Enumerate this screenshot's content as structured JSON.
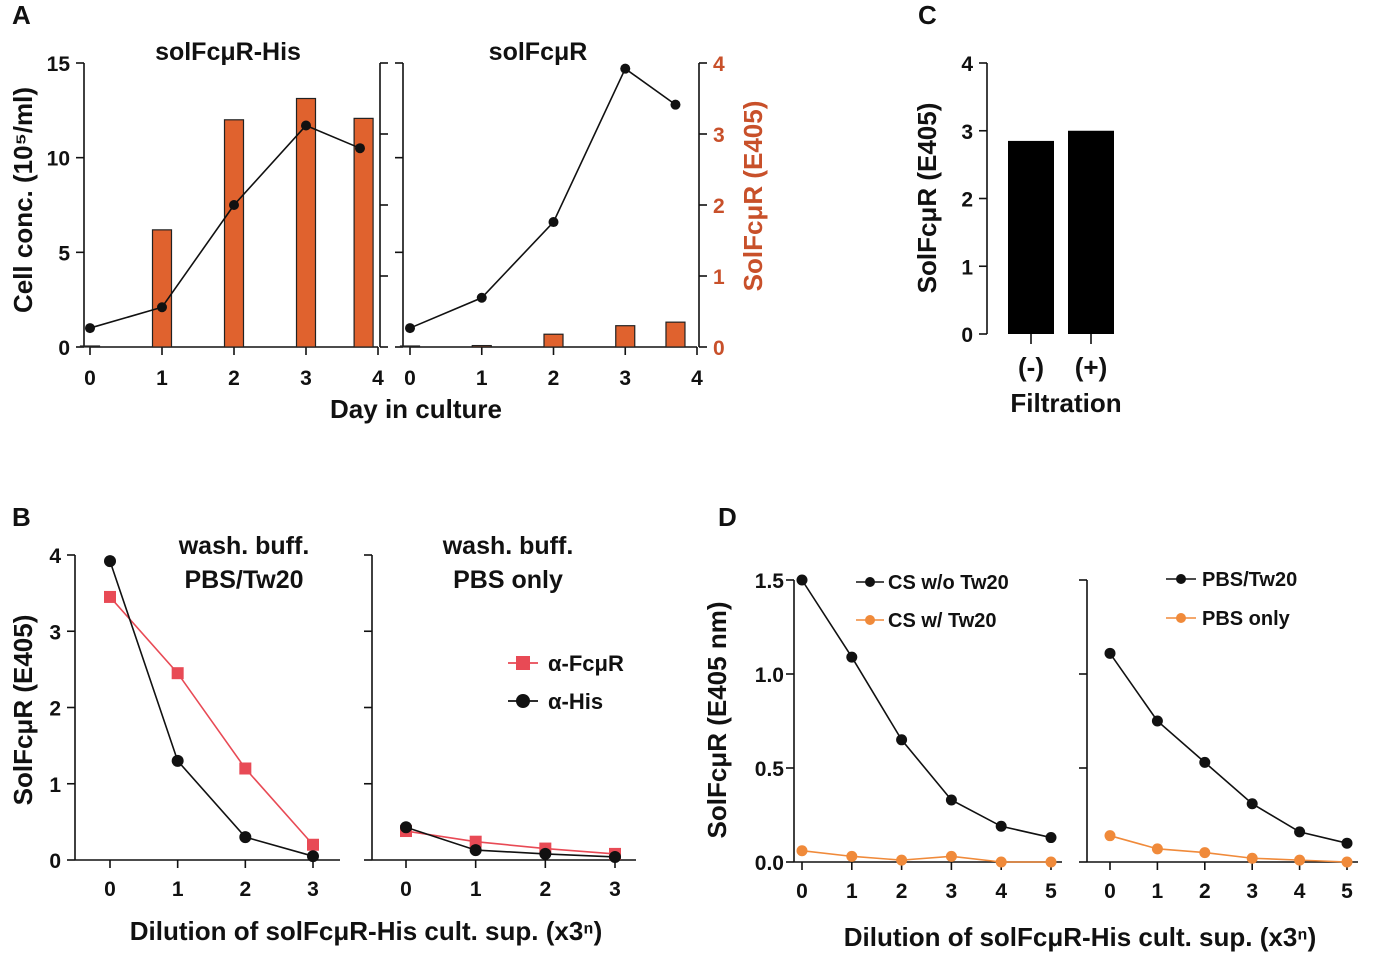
{
  "figure": {
    "panel_labels": [
      "A",
      "B",
      "C",
      "D"
    ]
  },
  "colors": {
    "orange_bar": "#e0622e",
    "red_axis_text": "#c8502a",
    "red_series": "#e84a55",
    "black": "#111111",
    "orange_series": "#f08a3a"
  },
  "chart_data": [
    {
      "id": "A-left",
      "type": "bar+line",
      "title": "solFcμR-His",
      "xlabel": "Day in culture",
      "ylabel_left": "Cell conc. (10⁵/ml)",
      "ylabel_right": "SolFcμR (E405)",
      "x_ticks": [
        "0",
        "1",
        "2",
        "3",
        "4"
      ],
      "y_left_ticks": [
        "0",
        "5",
        "10",
        "15"
      ],
      "y_left_range": [
        0,
        15
      ],
      "y_right_range": [
        0,
        4
      ],
      "bars": {
        "name": "SolFcμR (E405)",
        "x": [
          0,
          1,
          2,
          3,
          3.8
        ],
        "values": [
          0,
          1.65,
          3.2,
          3.5,
          3.22
        ]
      },
      "line": {
        "name": "Cell conc.",
        "x": [
          0,
          1,
          2,
          3,
          3.75
        ],
        "values": [
          1.0,
          2.1,
          7.5,
          11.7,
          10.5
        ]
      }
    },
    {
      "id": "A-right",
      "type": "bar+line",
      "title": "solFcμR",
      "x_ticks": [
        "0",
        "1",
        "2",
        "3",
        "4"
      ],
      "y_right_ticks": [
        "0",
        "1",
        "2",
        "3",
        "4"
      ],
      "y_left_range": [
        0,
        15
      ],
      "y_right_range": [
        0,
        4
      ],
      "bars": {
        "name": "SolFcμR (E405)",
        "x": [
          0,
          1,
          2,
          3,
          3.7
        ],
        "values": [
          0,
          0.02,
          0.18,
          0.3,
          0.35
        ]
      },
      "line": {
        "name": "Cell conc.",
        "x": [
          0,
          1,
          2,
          3,
          3.7
        ],
        "values": [
          1.0,
          2.6,
          6.6,
          14.7,
          12.8
        ]
      }
    },
    {
      "id": "C",
      "type": "bar",
      "categories": [
        "(-)",
        "(+)"
      ],
      "values": [
        2.85,
        3.0
      ],
      "xlabel": "Filtration",
      "ylabel": "SolFcμR (E405)",
      "y_ticks": [
        "0",
        "1",
        "2",
        "3",
        "4"
      ],
      "ylim": [
        0,
        4
      ]
    },
    {
      "id": "B-left",
      "type": "line",
      "title_line1": "wash. buff.",
      "title_line2": "PBS/Tw20",
      "ylabel": "SolFcμR (E405)",
      "x_ticks": [
        "0",
        "1",
        "2",
        "3"
      ],
      "y_ticks": [
        "0",
        "1",
        "2",
        "3",
        "4"
      ],
      "ylim": [
        0,
        4
      ],
      "x": [
        0,
        1,
        2,
        3
      ],
      "series": [
        {
          "name": "α-FcμR",
          "marker": "square",
          "values": [
            3.45,
            2.45,
            1.2,
            0.2
          ]
        },
        {
          "name": "α-His",
          "marker": "circle",
          "values": [
            3.92,
            1.3,
            0.3,
            0.05
          ]
        }
      ]
    },
    {
      "id": "B-right",
      "type": "line",
      "title_line1": "wash. buff.",
      "title_line2": "PBS only",
      "xlabel": "Dilution  of solFcμR-His  cult. sup. (x3ⁿ)",
      "x_ticks": [
        "0",
        "1",
        "2",
        "3"
      ],
      "ylim": [
        0,
        4
      ],
      "x": [
        0,
        1,
        2,
        3
      ],
      "legend": [
        "α-FcμR",
        "α-His"
      ],
      "series": [
        {
          "name": "α-FcμR",
          "marker": "square",
          "values": [
            0.38,
            0.24,
            0.15,
            0.08
          ]
        },
        {
          "name": "α-His",
          "marker": "circle",
          "values": [
            0.43,
            0.13,
            0.08,
            0.04
          ]
        }
      ]
    },
    {
      "id": "D-left",
      "type": "line",
      "ylabel": "SolFcμR (E405 nm)",
      "x_ticks": [
        "0",
        "1",
        "2",
        "3",
        "4",
        "5"
      ],
      "y_ticks": [
        "0.0",
        "0.5",
        "1.0",
        "1.5"
      ],
      "ylim": [
        0,
        1.5
      ],
      "x": [
        0,
        1,
        2,
        3,
        4,
        5
      ],
      "legend": [
        "CS w/o Tw20",
        "CS w/ Tw20"
      ],
      "series": [
        {
          "name": "CS w/o Tw20",
          "values": [
            1.5,
            1.09,
            0.65,
            0.33,
            0.19,
            0.13
          ]
        },
        {
          "name": "CS w/ Tw20",
          "values": [
            0.06,
            0.03,
            0.01,
            0.03,
            0.0,
            0.0
          ]
        }
      ]
    },
    {
      "id": "D-right",
      "type": "line",
      "xlabel": "Dilution  of solFcμR-His  cult. sup. (x3ⁿ)",
      "x_ticks": [
        "0",
        "1",
        "2",
        "3",
        "4",
        "5"
      ],
      "ylim": [
        0,
        1.5
      ],
      "x": [
        0,
        1,
        2,
        3,
        4,
        5
      ],
      "legend": [
        "PBS/Tw20",
        "PBS only"
      ],
      "series": [
        {
          "name": "PBS/Tw20",
          "values": [
            1.11,
            0.75,
            0.53,
            0.31,
            0.16,
            0.1
          ]
        },
        {
          "name": "PBS only",
          "values": [
            0.14,
            0.07,
            0.05,
            0.02,
            0.01,
            0.0
          ]
        }
      ]
    }
  ]
}
